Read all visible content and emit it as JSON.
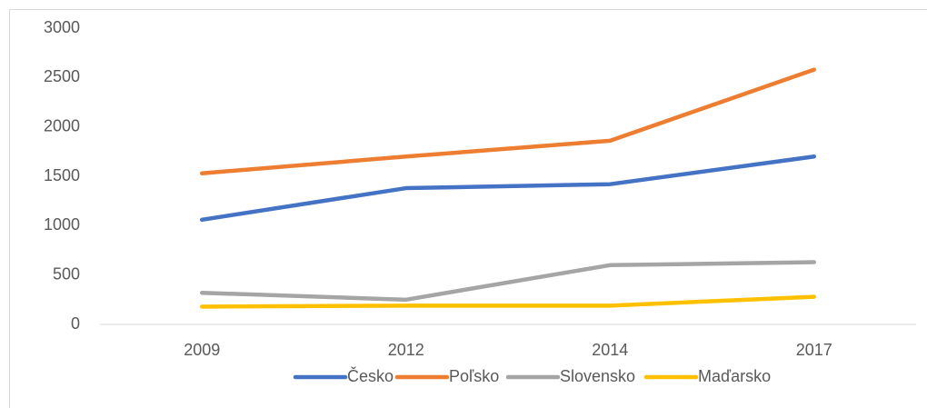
{
  "chart_data": {
    "type": "line",
    "categories": [
      "2009",
      "2012",
      "2014",
      "2017"
    ],
    "series": [
      {
        "name": "Česko",
        "color": "#4472c4",
        "values": [
          1060,
          1380,
          1420,
          1700
        ]
      },
      {
        "name": "Poľsko",
        "color": "#ed7d31",
        "values": [
          1530,
          1700,
          1860,
          2580
        ]
      },
      {
        "name": "Slovensko",
        "color": "#a5a5a5",
        "values": [
          320,
          250,
          600,
          630
        ]
      },
      {
        "name": "Maďarsko",
        "color": "#ffc000",
        "values": [
          180,
          190,
          190,
          280
        ]
      }
    ],
    "ylim": [
      0,
      3000
    ],
    "yticks": [
      0,
      500,
      1000,
      1500,
      2000,
      2500,
      3000
    ],
    "grid": false,
    "legend": "bottom"
  }
}
